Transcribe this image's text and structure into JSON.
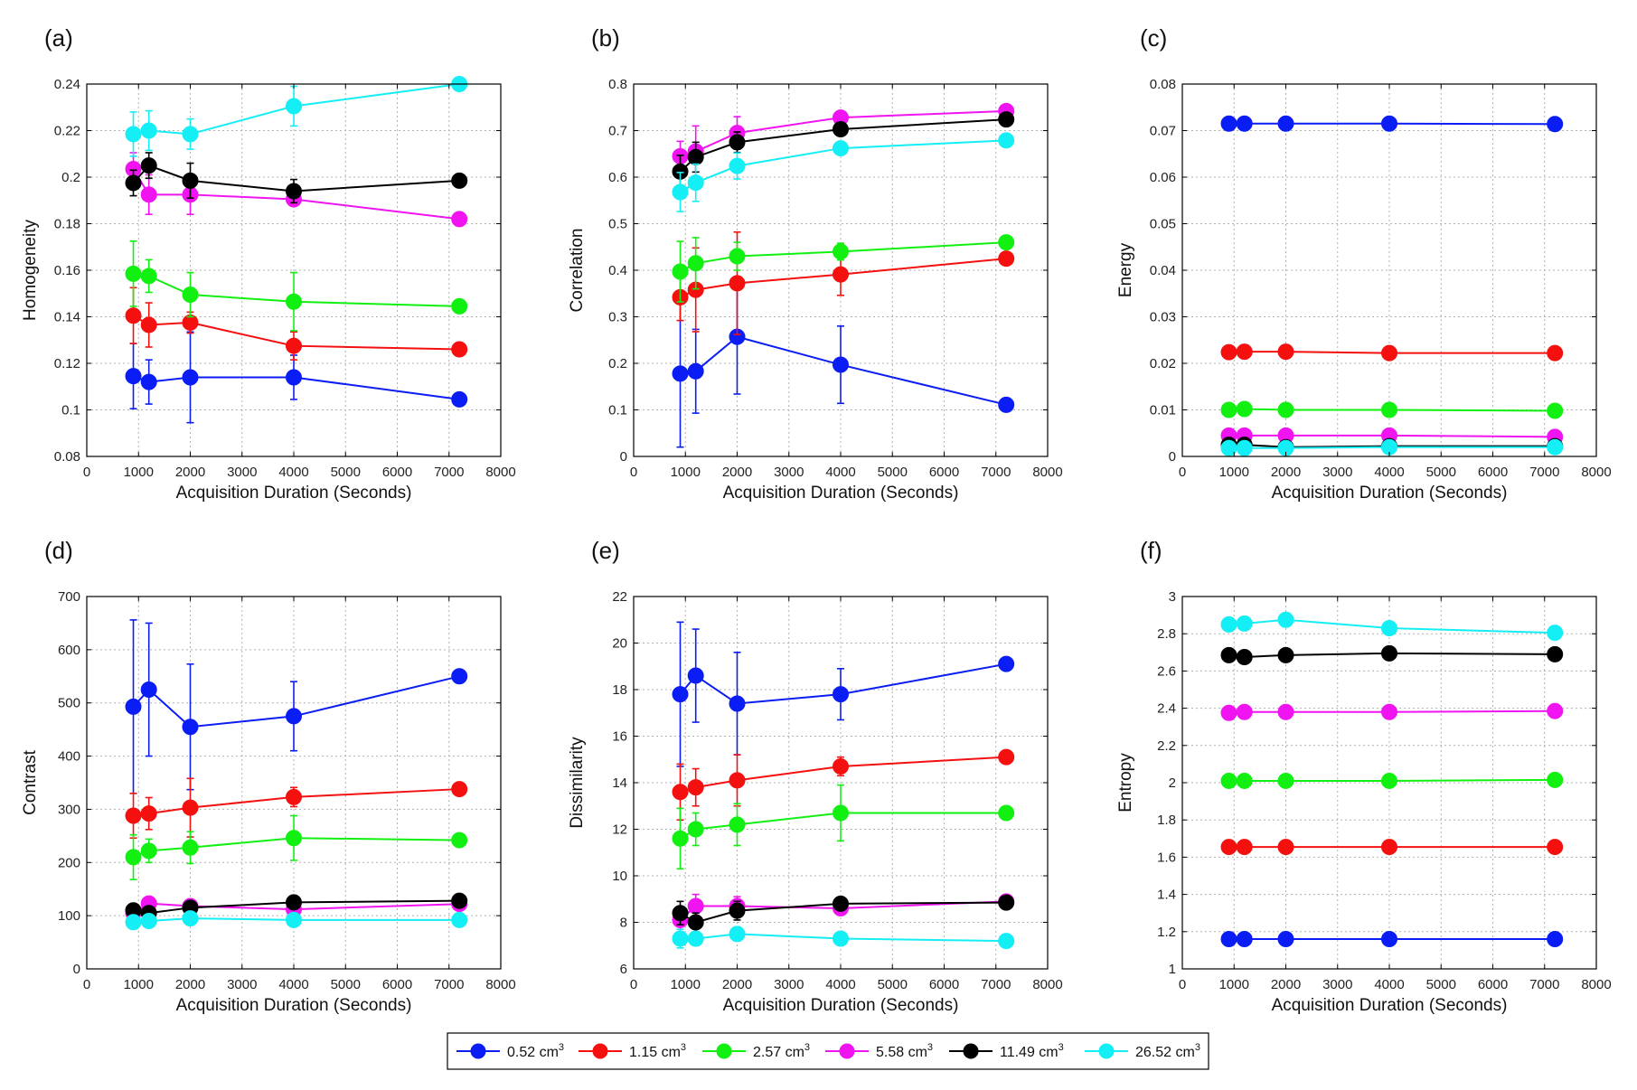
{
  "chart_data": {
    "series_styles": [
      {
        "name": "0.52 cm",
        "superscript": "3",
        "color": "#0b1df5"
      },
      {
        "name": "1.15 cm",
        "superscript": "3",
        "color": "#f51010"
      },
      {
        "name": "2.57 cm",
        "superscript": "3",
        "color": "#12f012"
      },
      {
        "name": "5.58 cm",
        "superscript": "3",
        "color": "#f014f0"
      },
      {
        "name": "11.49 cm",
        "superscript": "3",
        "color": "#000000"
      },
      {
        "name": "26.52 cm",
        "superscript": "3",
        "color": "#14eef5"
      }
    ],
    "x": [
      900,
      1200,
      2000,
      4000,
      7200
    ],
    "panels": [
      {
        "label": "(a)",
        "type": "line",
        "title": "",
        "xlabel": "Acquisition Duration (Seconds)",
        "ylabel": "Homogeneity",
        "xlim": [
          0,
          8000
        ],
        "xticks": [
          0,
          1000,
          2000,
          3000,
          4000,
          5000,
          6000,
          7000,
          8000
        ],
        "ylim": [
          0.08,
          0.24
        ],
        "yticks": [
          0.08,
          0.1,
          0.12,
          0.14,
          0.16,
          0.18,
          0.2,
          0.22,
          0.24
        ],
        "ytick_labels": [
          "0.08",
          "0.1",
          "0.12",
          "0.14",
          "0.16",
          "0.18",
          "0.2",
          "0.22",
          "0.24"
        ],
        "grid": true,
        "series": [
          {
            "name": "0.52 cm3",
            "values": [
              0.1145,
              0.112,
              0.114,
              0.114,
              0.1045
            ],
            "errors": [
              0.014,
              0.0095,
              0.0195,
              0.0095,
              0
            ]
          },
          {
            "name": "1.15 cm3",
            "values": [
              0.1405,
              0.1365,
              0.1375,
              0.1275,
              0.126
            ],
            "errors": [
              0.012,
              0.0095,
              0.0045,
              0.006,
              0
            ]
          },
          {
            "name": "2.57 cm3",
            "values": [
              0.1585,
              0.1575,
              0.1495,
              0.1465,
              0.1445
            ],
            "errors": [
              0.014,
              0.007,
              0.0095,
              0.0125,
              0
            ]
          },
          {
            "name": "5.58 cm3",
            "values": [
              0.2035,
              0.1925,
              0.1925,
              0.1905,
              0.182
            ],
            "errors": [
              0.007,
              0.0085,
              0.0085,
              0.002,
              0
            ]
          },
          {
            "name": "11.49 cm3",
            "values": [
              0.1975,
              0.205,
              0.1985,
              0.194,
              0.1985
            ],
            "errors": [
              0.0055,
              0.0055,
              0.0075,
              0.005,
              0
            ]
          },
          {
            "name": "26.52 cm3",
            "values": [
              0.2185,
              0.22,
              0.2185,
              0.2305,
              0.24
            ],
            "errors": [
              0.0095,
              0.0085,
              0.0065,
              0.0085,
              0
            ]
          }
        ]
      },
      {
        "label": "(b)",
        "type": "line",
        "title": "",
        "xlabel": "Acquisition Duration (Seconds)",
        "ylabel": "Correlation",
        "xlim": [
          0,
          8000
        ],
        "xticks": [
          0,
          1000,
          2000,
          3000,
          4000,
          5000,
          6000,
          7000,
          8000
        ],
        "ylim": [
          0,
          0.8
        ],
        "yticks": [
          0,
          0.1,
          0.2,
          0.3,
          0.4,
          0.5,
          0.6,
          0.7,
          0.8
        ],
        "ytick_labels": [
          "0",
          "0.1",
          "0.2",
          "0.3",
          "0.4",
          "0.5",
          "0.6",
          "0.7",
          "0.8"
        ],
        "grid": true,
        "series": [
          {
            "name": "0.52 cm3",
            "values": [
              0.178,
              0.183,
              0.257,
              0.197,
              0.111
            ],
            "errors": [
              0.158,
              0.09,
              0.123,
              0.083,
              0
            ]
          },
          {
            "name": "1.15 cm3",
            "values": [
              0.342,
              0.358,
              0.372,
              0.391,
              0.425
            ],
            "errors": [
              0.05,
              0.09,
              0.11,
              0.045,
              0
            ]
          },
          {
            "name": "2.57 cm3",
            "values": [
              0.397,
              0.415,
              0.43,
              0.44,
              0.46
            ],
            "errors": [
              0.065,
              0.055,
              0.03,
              0.018,
              0
            ]
          },
          {
            "name": "5.58 cm3",
            "values": [
              0.645,
              0.655,
              0.695,
              0.728,
              0.742
            ],
            "errors": [
              0.032,
              0.055,
              0.035,
              0.012,
              0
            ]
          },
          {
            "name": "11.49 cm3",
            "values": [
              0.612,
              0.643,
              0.675,
              0.703,
              0.724
            ],
            "errors": [
              0.035,
              0.032,
              0.022,
              0.012,
              0
            ]
          },
          {
            "name": "26.52 cm3",
            "values": [
              0.568,
              0.588,
              0.624,
              0.662,
              0.679
            ],
            "errors": [
              0.042,
              0.04,
              0.028,
              0.012,
              0
            ]
          }
        ]
      },
      {
        "label": "(c)",
        "type": "line",
        "title": "",
        "xlabel": "Acquisition Duration (Seconds)",
        "ylabel": "Energy",
        "xlim": [
          0,
          8000
        ],
        "xticks": [
          0,
          1000,
          2000,
          3000,
          4000,
          5000,
          6000,
          7000,
          8000
        ],
        "ylim": [
          0,
          0.08
        ],
        "yticks": [
          0,
          0.01,
          0.02,
          0.03,
          0.04,
          0.05,
          0.06,
          0.07,
          0.08
        ],
        "ytick_labels": [
          "0",
          "0.01",
          "0.02",
          "0.03",
          "0.04",
          "0.05",
          "0.06",
          "0.07",
          "0.08"
        ],
        "grid": true,
        "series": [
          {
            "name": "0.52 cm3",
            "values": [
              0.0715,
              0.0715,
              0.0715,
              0.0715,
              0.0714
            ],
            "errors": [
              0,
              0,
              0,
              0,
              0
            ]
          },
          {
            "name": "1.15 cm3",
            "values": [
              0.0224,
              0.0225,
              0.0225,
              0.0222,
              0.0222
            ],
            "errors": [
              0,
              0,
              0,
              0,
              0
            ]
          },
          {
            "name": "2.57 cm3",
            "values": [
              0.01,
              0.0102,
              0.01,
              0.01,
              0.0098
            ],
            "errors": [
              0,
              0,
              0,
              0,
              0
            ]
          },
          {
            "name": "5.58 cm3",
            "values": [
              0.0045,
              0.0045,
              0.0045,
              0.0045,
              0.0042
            ],
            "errors": [
              0,
              0,
              0,
              0,
              0
            ]
          },
          {
            "name": "11.49 cm3",
            "values": [
              0.0025,
              0.0025,
              0.002,
              0.0022,
              0.0022
            ],
            "errors": [
              0,
              0,
              0,
              0,
              0
            ]
          },
          {
            "name": "26.52 cm3",
            "values": [
              0.0018,
              0.0018,
              0.0018,
              0.002,
              0.002
            ],
            "errors": [
              0,
              0,
              0,
              0,
              0
            ]
          }
        ]
      },
      {
        "label": "(d)",
        "type": "line",
        "title": "",
        "xlabel": "Acquisition Duration (Seconds)",
        "ylabel": "Contrast",
        "xlim": [
          0,
          8000
        ],
        "xticks": [
          0,
          1000,
          2000,
          3000,
          4000,
          5000,
          6000,
          7000,
          8000
        ],
        "ylim": [
          0,
          700
        ],
        "yticks": [
          0,
          100,
          200,
          300,
          400,
          500,
          600,
          700
        ],
        "ytick_labels": [
          "0",
          "100",
          "200",
          "300",
          "400",
          "500",
          "600",
          "700"
        ],
        "grid": true,
        "series": [
          {
            "name": "0.52 cm3",
            "values": [
              493,
              525,
              455,
              475,
              550
            ],
            "errors": [
              163,
              125,
              118,
              65,
              0
            ]
          },
          {
            "name": "1.15 cm3",
            "values": [
              288,
              292,
              303,
              323,
              338
            ],
            "errors": [
              42,
              30,
              55,
              18,
              0
            ]
          },
          {
            "name": "2.57 cm3",
            "values": [
              210,
              222,
              228,
              246,
              242
            ],
            "errors": [
              42,
              22,
              30,
              42,
              0
            ]
          },
          {
            "name": "5.58 cm3",
            "values": [
              105,
              123,
              118,
              112,
              122
            ],
            "errors": [
              12,
              10,
              10,
              5,
              0
            ]
          },
          {
            "name": "11.49 cm3",
            "values": [
              110,
              105,
              115,
              125,
              128
            ],
            "errors": [
              12,
              10,
              10,
              8,
              0
            ]
          },
          {
            "name": "26.52 cm3",
            "values": [
              88,
              90,
              95,
              92,
              92
            ],
            "errors": [
              10,
              8,
              8,
              5,
              0
            ]
          }
        ]
      },
      {
        "label": "(e)",
        "type": "line",
        "title": "",
        "xlabel": "Acquisition Duration (Seconds)",
        "ylabel": "Dissimilarity",
        "xlim": [
          0,
          8000
        ],
        "xticks": [
          0,
          1000,
          2000,
          3000,
          4000,
          5000,
          6000,
          7000,
          8000
        ],
        "ylim": [
          6,
          22
        ],
        "yticks": [
          6,
          8,
          10,
          12,
          14,
          16,
          18,
          20,
          22
        ],
        "ytick_labels": [
          "6",
          "8",
          "10",
          "12",
          "14",
          "16",
          "18",
          "20",
          "22"
        ],
        "grid": true,
        "series": [
          {
            "name": "0.52 cm3",
            "values": [
              17.8,
              18.6,
              17.4,
              17.8,
              19.1
            ],
            "errors": [
              3.1,
              2.0,
              2.2,
              1.1,
              0
            ]
          },
          {
            "name": "1.15 cm3",
            "values": [
              13.6,
              13.8,
              14.1,
              14.7,
              15.1
            ],
            "errors": [
              1.2,
              0.8,
              1.1,
              0.4,
              0
            ]
          },
          {
            "name": "2.57 cm3",
            "values": [
              11.6,
              12.0,
              12.2,
              12.7,
              12.7
            ],
            "errors": [
              1.3,
              0.7,
              0.9,
              1.2,
              0
            ]
          },
          {
            "name": "5.58 cm3",
            "values": [
              8.1,
              8.7,
              8.7,
              8.6,
              8.9
            ],
            "errors": [
              0.5,
              0.5,
              0.4,
              0.2,
              0
            ]
          },
          {
            "name": "11.49 cm3",
            "values": [
              8.4,
              8.0,
              8.5,
              8.8,
              8.85
            ],
            "errors": [
              0.5,
              0.4,
              0.4,
              0.2,
              0
            ]
          },
          {
            "name": "26.52 cm3",
            "values": [
              7.3,
              7.3,
              7.5,
              7.3,
              7.2
            ],
            "errors": [
              0.4,
              0.3,
              0.3,
              0.2,
              0
            ]
          }
        ]
      },
      {
        "label": "(f)",
        "type": "line",
        "title": "",
        "xlabel": "Acquisition Duration (Seconds)",
        "ylabel": "Entropy",
        "xlim": [
          0,
          8000
        ],
        "xticks": [
          0,
          1000,
          2000,
          3000,
          4000,
          5000,
          6000,
          7000,
          8000
        ],
        "ylim": [
          1,
          3
        ],
        "yticks": [
          1,
          1.2,
          1.4,
          1.6,
          1.8,
          2,
          2.2,
          2.4,
          2.6,
          2.8,
          3
        ],
        "ytick_labels": [
          "1",
          "1.2",
          "1.4",
          "1.6",
          "1.8",
          "2",
          "2.2",
          "2.4",
          "2.6",
          "2.8",
          "3"
        ],
        "grid": true,
        "series": [
          {
            "name": "0.52 cm3",
            "values": [
              1.16,
              1.16,
              1.16,
              1.16,
              1.16
            ],
            "errors": [
              0,
              0,
              0,
              0,
              0
            ]
          },
          {
            "name": "1.15 cm3",
            "values": [
              1.655,
              1.655,
              1.655,
              1.655,
              1.655
            ],
            "errors": [
              0,
              0,
              0,
              0,
              0
            ]
          },
          {
            "name": "2.57 cm3",
            "values": [
              2.01,
              2.01,
              2.01,
              2.01,
              2.015
            ],
            "errors": [
              0,
              0,
              0,
              0,
              0
            ]
          },
          {
            "name": "5.58 cm3",
            "values": [
              2.375,
              2.38,
              2.38,
              2.38,
              2.385
            ],
            "errors": [
              0,
              0,
              0,
              0,
              0
            ]
          },
          {
            "name": "11.49 cm3",
            "values": [
              2.685,
              2.675,
              2.685,
              2.695,
              2.69
            ],
            "errors": [
              0,
              0,
              0,
              0,
              0
            ]
          },
          {
            "name": "26.52 cm3",
            "values": [
              2.85,
              2.855,
              2.875,
              2.83,
              2.805
            ],
            "errors": [
              0,
              0,
              0,
              0,
              0
            ]
          }
        ]
      }
    ]
  }
}
